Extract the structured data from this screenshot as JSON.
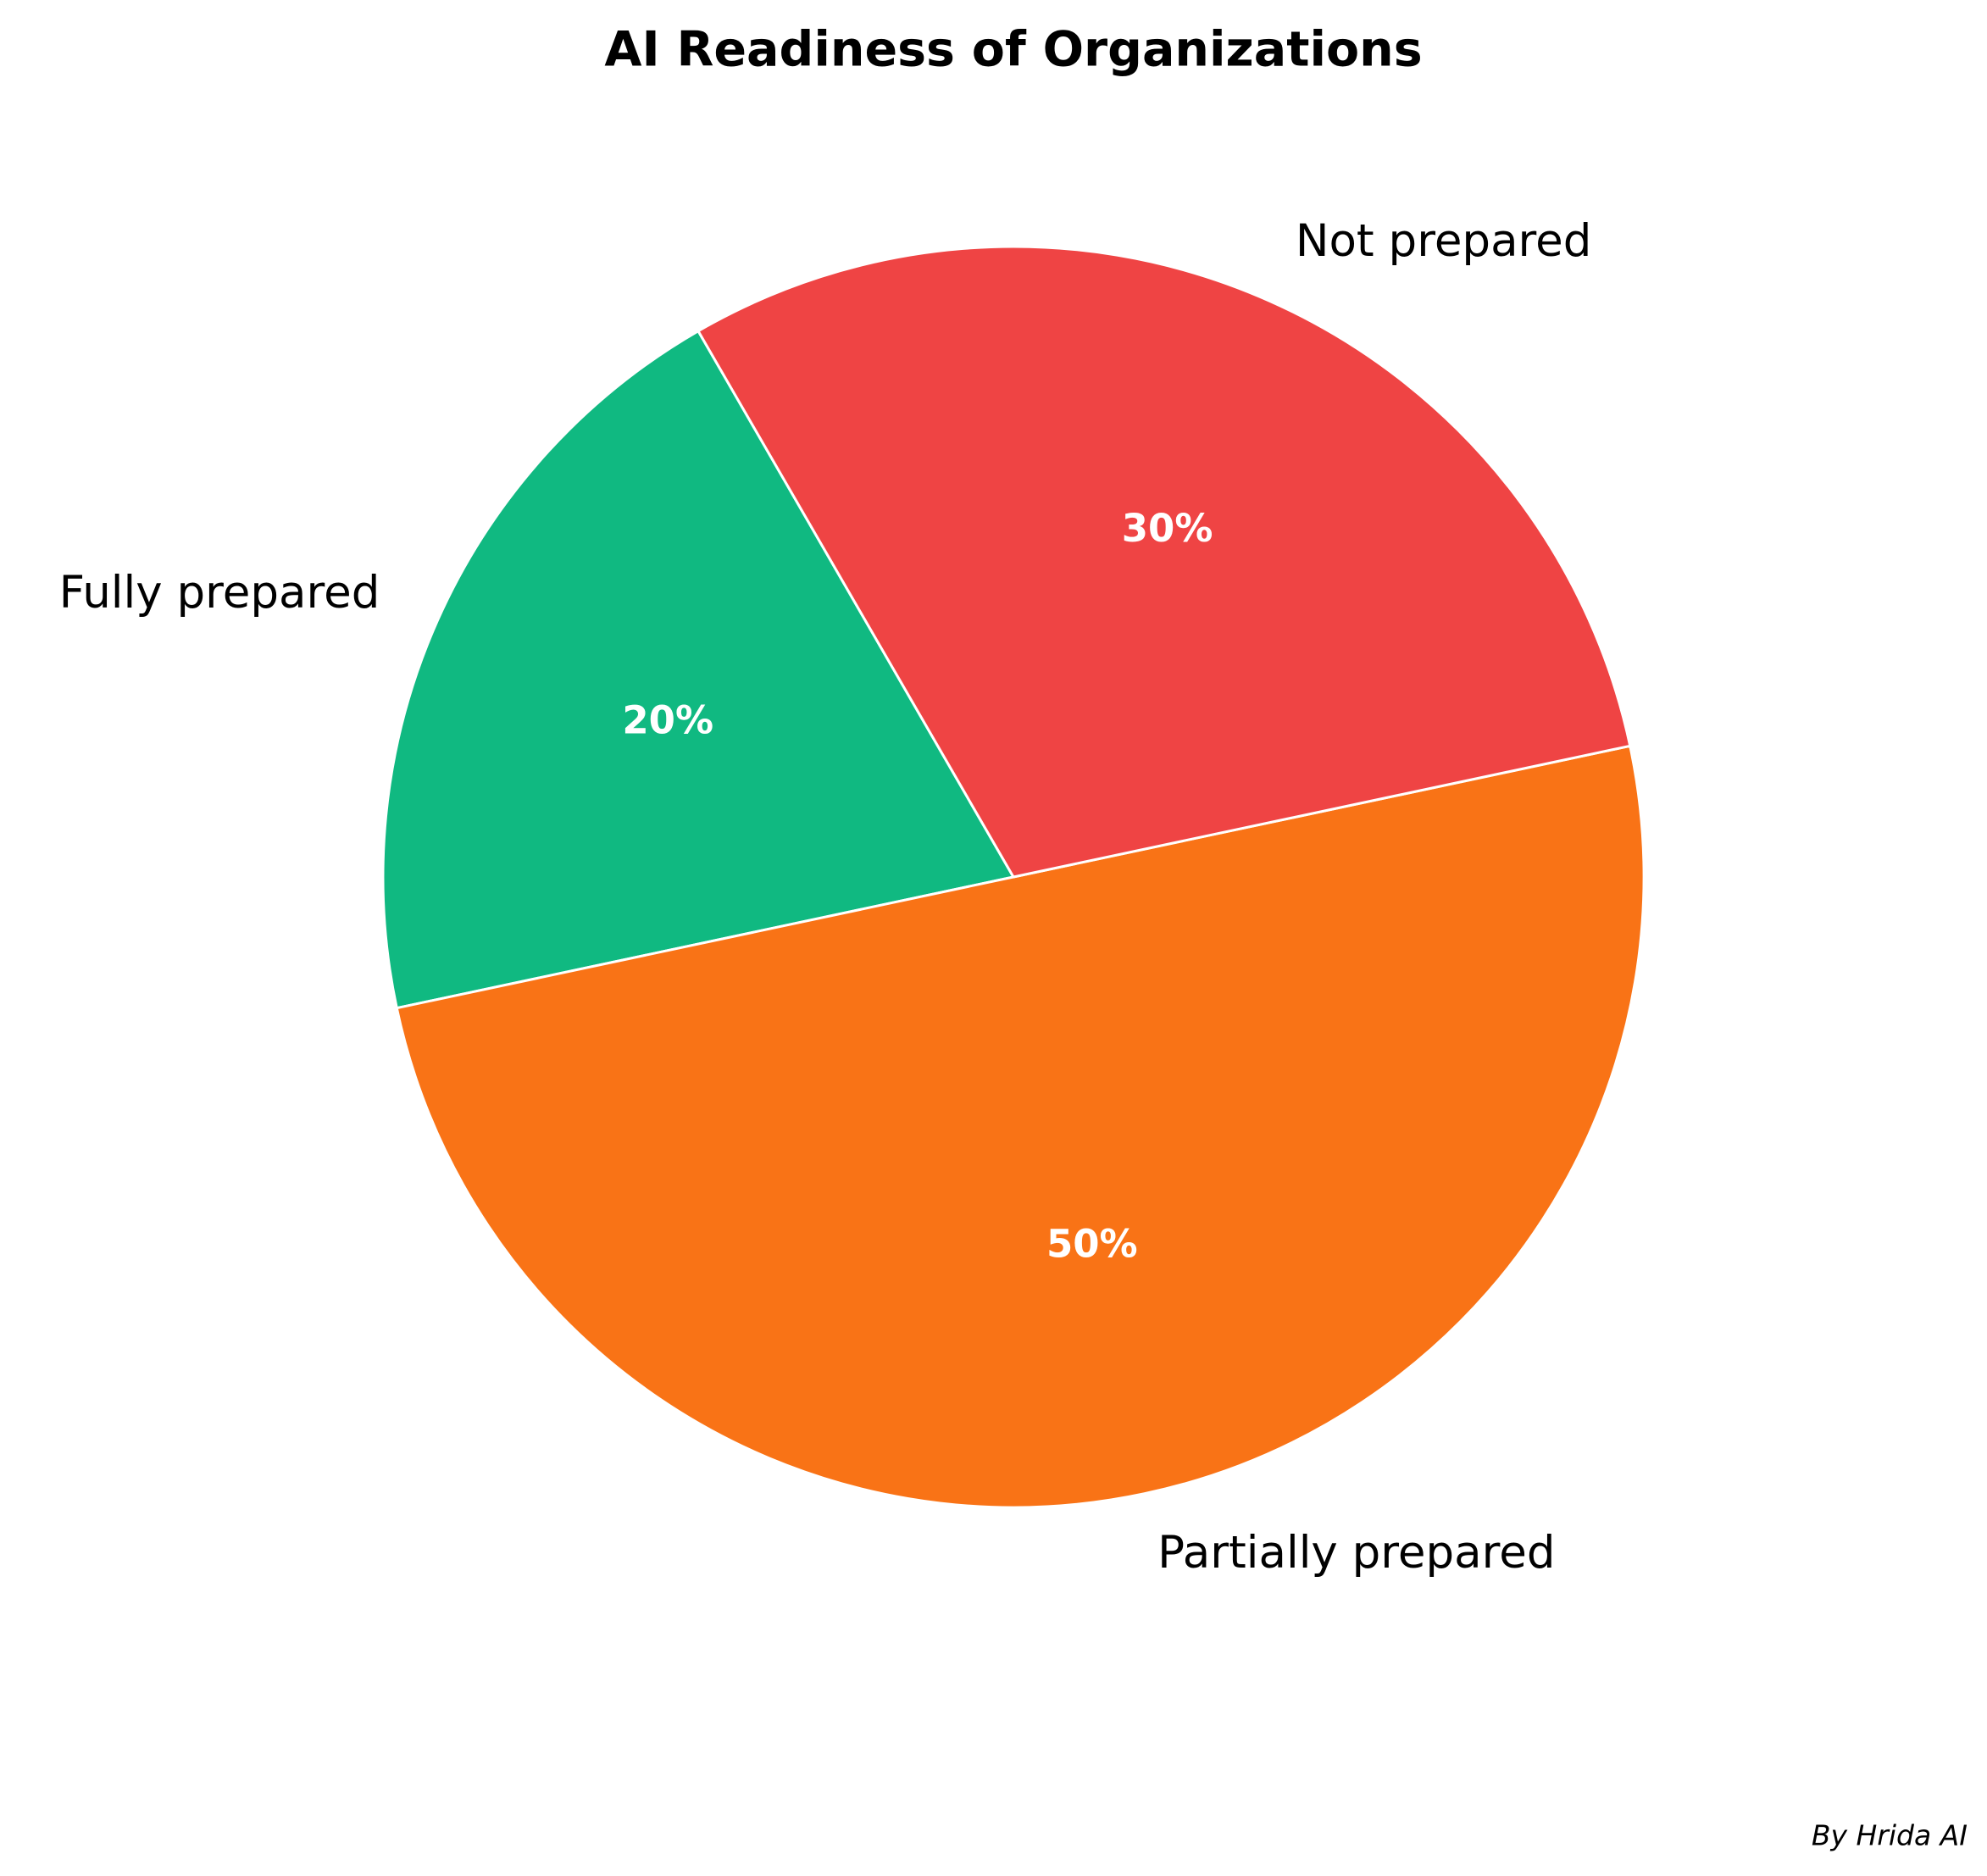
{
  "chart_data": {
    "type": "pie",
    "title": "AI Readiness of Organizations",
    "categories": [
      "Fully prepared",
      "Partially prepared",
      "Not prepared"
    ],
    "values": [
      20,
      50,
      30
    ],
    "value_labels": [
      "20%",
      "50%",
      "30%"
    ],
    "colors": [
      "#10b981",
      "#f97316",
      "#ef4444"
    ],
    "startangle": 120,
    "counterclock": true,
    "footer": "By Hrida AI"
  }
}
